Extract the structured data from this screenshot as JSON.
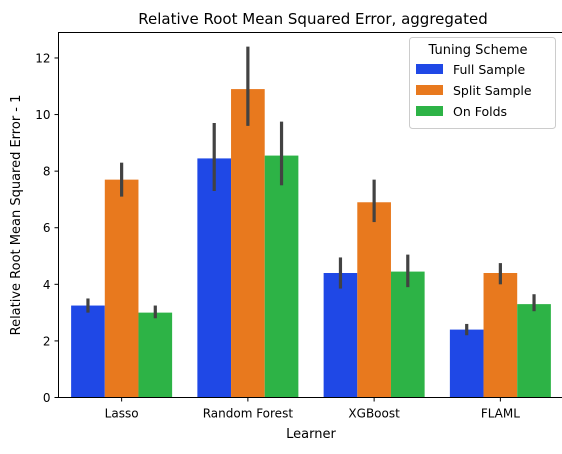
{
  "chart_data": {
    "type": "bar",
    "title": "Relative Root Mean Squared Error, aggregated",
    "xlabel": "Learner",
    "ylabel": "Relative Root Mean Squared Error - 1",
    "categories": [
      "Lasso",
      "Random Forest",
      "XGBoost",
      "FLAML"
    ],
    "ylim": [
      0,
      12.9
    ],
    "yticks": [
      0,
      2,
      4,
      6,
      8,
      10,
      12
    ],
    "grid": false,
    "legend": {
      "title": "Tuning Scheme",
      "placement": "top-right"
    },
    "series": [
      {
        "name": "Full Sample",
        "color": "#1f48e6",
        "values": [
          3.25,
          8.45,
          4.4,
          2.4
        ],
        "error_low": [
          3.0,
          7.3,
          3.85,
          2.2
        ],
        "error_high": [
          3.5,
          9.7,
          4.95,
          2.6
        ]
      },
      {
        "name": "Split Sample",
        "color": "#e8791e",
        "values": [
          7.7,
          10.9,
          6.9,
          4.4
        ],
        "error_low": [
          7.1,
          9.6,
          6.2,
          4.0
        ],
        "error_high": [
          8.3,
          12.4,
          7.7,
          4.75
        ]
      },
      {
        "name": "On Folds",
        "color": "#2db346",
        "values": [
          3.0,
          8.55,
          4.45,
          3.3
        ],
        "error_low": [
          2.8,
          7.5,
          3.9,
          3.05
        ],
        "error_high": [
          3.25,
          9.75,
          5.05,
          3.65
        ]
      }
    ]
  }
}
